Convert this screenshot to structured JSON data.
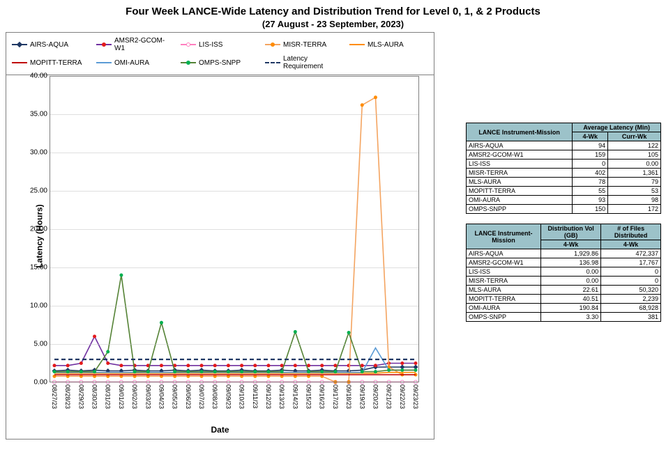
{
  "title": "Four Week LANCE-Wide Latency and Distribution Trend for Level 0, 1, & 2 Products",
  "subtitle": "(27  August    -  23  September,  2023)",
  "ylabel": "Latency (Hours)",
  "xlabel": "Date",
  "chart": {
    "type": "line",
    "background_color": "#ffffff",
    "border_color": "#7f7f7f",
    "grid_color": "#c0c0c0",
    "ylim": [
      0,
      40
    ],
    "ytick_step": 5,
    "ytick_format": "fixed2",
    "x_categories": [
      "08/27/23",
      "08/28/23",
      "08/29/23",
      "08/30/23",
      "08/31/23",
      "09/01/23",
      "09/02/23",
      "09/03/23",
      "09/04/23",
      "09/05/23",
      "09/06/23",
      "09/07/23",
      "09/08/23",
      "09/09/23",
      "09/10/23",
      "09/11/23",
      "09/12/23",
      "09/13/23",
      "09/14/23",
      "09/15/23",
      "09/16/23",
      "09/17/23",
      "09/18/23",
      "09/19/23",
      "09/20/23",
      "09/21/23",
      "09/22/23",
      "09/23/23"
    ],
    "title_fontsize": 15,
    "subtitle_fontsize": 13,
    "axis_label_fontsize": 12,
    "tick_fontsize": 10,
    "legend_fontsize": 10,
    "line_width": 1.6,
    "marker_size": 5
  },
  "series": [
    {
      "name": "AIRS-AQUA",
      "color": "#1f3864",
      "marker": "diamond",
      "marker_fill": "#1f3864",
      "values": [
        1.5,
        1.6,
        1.5,
        1.6,
        1.5,
        1.5,
        1.6,
        1.5,
        1.5,
        1.6,
        1.5,
        1.6,
        1.5,
        1.5,
        1.6,
        1.5,
        1.5,
        1.6,
        1.5,
        1.5,
        1.6,
        1.5,
        1.5,
        1.6,
        2.0,
        2.0,
        2.0,
        2.0
      ]
    },
    {
      "name": "AMSR2-GCOM-W1",
      "color": "#7030a0",
      "marker": "circle",
      "marker_fill": "#e31a1c",
      "values": [
        2.2,
        2.2,
        2.5,
        6.0,
        2.5,
        2.2,
        2.2,
        2.2,
        2.2,
        2.2,
        2.2,
        2.2,
        2.2,
        2.2,
        2.2,
        2.2,
        2.2,
        2.2,
        2.2,
        2.2,
        2.2,
        2.2,
        2.2,
        2.2,
        2.2,
        2.5,
        2.5,
        2.5
      ]
    },
    {
      "name": "LIS-ISS",
      "color": "#ff7fbf",
      "marker": "circle",
      "marker_fill": "#ffffff",
      "marker_stroke": "#ff7fbf",
      "values": [
        0.05,
        0.05,
        0.05,
        0.05,
        0.05,
        0.05,
        0.05,
        0.05,
        0.05,
        0.05,
        0.05,
        0.05,
        0.05,
        0.05,
        0.05,
        0.05,
        0.05,
        0.05,
        0.05,
        0.05,
        0.05,
        0.05,
        0.05,
        0.05,
        0.05,
        0.05,
        0.05,
        0.05
      ]
    },
    {
      "name": "MISR-TERRA",
      "color": "#f4a460",
      "marker": "circle",
      "marker_fill": "#ff8c00",
      "values": [
        0.8,
        0.8,
        0.8,
        0.8,
        0.8,
        0.8,
        0.8,
        0.8,
        0.8,
        0.8,
        0.8,
        0.8,
        0.8,
        0.8,
        0.8,
        0.8,
        0.8,
        0.8,
        0.8,
        0.8,
        0.8,
        0.05,
        0.05,
        36.2,
        37.2,
        2.0,
        1.0,
        1.0
      ]
    },
    {
      "name": "MLS-AURA",
      "color": "#ff8c00",
      "marker": "none",
      "dash": "none",
      "values": [
        1.2,
        1.2,
        1.2,
        1.2,
        1.2,
        1.2,
        1.2,
        1.2,
        1.2,
        1.2,
        1.2,
        1.2,
        1.2,
        1.2,
        1.2,
        1.2,
        1.2,
        1.2,
        1.2,
        1.2,
        1.2,
        1.2,
        1.2,
        1.2,
        1.2,
        1.3,
        1.3,
        1.3
      ]
    },
    {
      "name": "MOPITT-TERRA",
      "color": "#c00000",
      "marker": "none",
      "values": [
        1.0,
        1.0,
        1.0,
        1.0,
        1.0,
        1.0,
        1.0,
        1.0,
        1.0,
        1.0,
        1.0,
        1.0,
        1.0,
        1.0,
        1.0,
        1.0,
        1.0,
        1.0,
        1.0,
        1.0,
        1.0,
        1.0,
        1.0,
        1.0,
        1.0,
        1.0,
        1.0,
        1.0
      ]
    },
    {
      "name": "OMI-AURA",
      "color": "#5b9bd5",
      "marker": "none",
      "values": [
        1.3,
        1.3,
        1.3,
        1.3,
        1.3,
        1.3,
        1.3,
        1.3,
        1.3,
        1.3,
        1.3,
        1.3,
        1.3,
        1.3,
        1.3,
        1.3,
        1.3,
        1.3,
        1.3,
        1.3,
        1.3,
        1.3,
        1.3,
        1.3,
        4.5,
        1.6,
        1.6,
        1.6
      ]
    },
    {
      "name": "OMPS-SNPP",
      "color": "#548235",
      "marker": "circle",
      "marker_fill": "#00b050",
      "values": [
        1.4,
        1.4,
        1.4,
        1.4,
        4.0,
        14.0,
        1.4,
        1.4,
        7.8,
        1.4,
        1.4,
        1.4,
        1.4,
        1.4,
        1.4,
        1.4,
        1.4,
        1.4,
        6.6,
        1.4,
        1.4,
        1.4,
        6.5,
        1.4,
        1.4,
        1.6,
        1.6,
        1.6
      ]
    },
    {
      "name": "Latency Requirement",
      "color": "#1f3864",
      "marker": "none",
      "dash": "6,4",
      "width": 2.2,
      "values": [
        3.0,
        3.0,
        3.0,
        3.0,
        3.0,
        3.0,
        3.0,
        3.0,
        3.0,
        3.0,
        3.0,
        3.0,
        3.0,
        3.0,
        3.0,
        3.0,
        3.0,
        3.0,
        3.0,
        3.0,
        3.0,
        3.0,
        3.0,
        3.0,
        3.0,
        3.0,
        3.0,
        3.0
      ]
    }
  ],
  "table1": {
    "header_instrument": "LANCE Instrument-Mission",
    "header_group": "Average Latency (Min)",
    "col1": "4-Wk",
    "col2": "Curr-Wk",
    "header_bg": "#9cc2c9",
    "rows": [
      {
        "label": "AIRS-AQUA",
        "v1": "94",
        "v2": "122"
      },
      {
        "label": "AMSR2-GCOM-W1",
        "v1": "159",
        "v2": "105"
      },
      {
        "label": "LIS-ISS",
        "v1": "0",
        "v2": "0.00"
      },
      {
        "label": "MISR-TERRA",
        "v1": "402",
        "v2": "1,361"
      },
      {
        "label": "MLS-AURA",
        "v1": "78",
        "v2": "79"
      },
      {
        "label": "MOPITT-TERRA",
        "v1": "55",
        "v2": "53"
      },
      {
        "label": "OMI-AURA",
        "v1": "93",
        "v2": "98"
      },
      {
        "label": "OMPS-SNPP",
        "v1": "150",
        "v2": "172"
      }
    ]
  },
  "table2": {
    "header_instrument": "LANCE Instrument-Mission",
    "col1_top": "Distribution Vol (GB)",
    "col2_top": "# of Files Distributed",
    "col_sub": "4-Wk",
    "header_bg": "#9cc2c9",
    "rows": [
      {
        "label": "AIRS-AQUA",
        "v1": "1,929.86",
        "v2": "472,337"
      },
      {
        "label": "AMSR2-GCOM-W1",
        "v1": "136.98",
        "v2": "17,767"
      },
      {
        "label": "LIS-ISS",
        "v1": "0.00",
        "v2": "0"
      },
      {
        "label": "MISR-TERRA",
        "v1": "0.00",
        "v2": "0"
      },
      {
        "label": "MLS-AURA",
        "v1": "22.61",
        "v2": "50,320"
      },
      {
        "label": "MOPITT-TERRA",
        "v1": "40.51",
        "v2": "2,239"
      },
      {
        "label": "OMI-AURA",
        "v1": "190.84",
        "v2": "68,928"
      },
      {
        "label": "OMPS-SNPP",
        "v1": "3.30",
        "v2": "381"
      }
    ]
  }
}
